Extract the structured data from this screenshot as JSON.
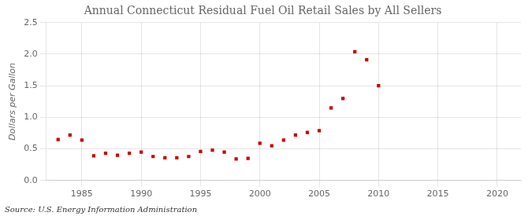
{
  "chart_data": {
    "type": "scatter",
    "title": "Annual Connecticut Residual Fuel Oil Retail Sales by All Sellers",
    "ylabel": "Dollars per Gallon",
    "annotations": [
      "Source: U.S. Energy Information Administration"
    ],
    "x": [
      1983,
      1984,
      1985,
      1986,
      1987,
      1988,
      1989,
      1990,
      1991,
      1992,
      1993,
      1994,
      1995,
      1996,
      1997,
      1998,
      1999,
      2000,
      2001,
      2002,
      2003,
      2004,
      2005,
      2006,
      2007,
      2008,
      2009,
      2010
    ],
    "values": [
      0.65,
      0.72,
      0.64,
      0.39,
      0.43,
      0.4,
      0.43,
      0.45,
      0.38,
      0.36,
      0.36,
      0.38,
      0.46,
      0.48,
      0.45,
      0.34,
      0.35,
      0.59,
      0.55,
      0.64,
      0.72,
      0.76,
      0.79,
      1.15,
      1.3,
      2.04,
      1.91,
      1.5
    ],
    "color": "#cc0000",
    "marker": "square",
    "xlim": [
      1982,
      2022
    ],
    "ylim": [
      0.0,
      2.5
    ],
    "xticks": [
      1985,
      1990,
      1995,
      2000,
      2005,
      2010,
      2015,
      2020
    ],
    "yticks": [
      {
        "value": 0.0,
        "label": "0.0"
      },
      0.5,
      {
        "value": 1.0,
        "label": "1.0"
      },
      1.5,
      {
        "value": 2.0,
        "label": "2.0"
      },
      2.5
    ],
    "grid": true
  }
}
